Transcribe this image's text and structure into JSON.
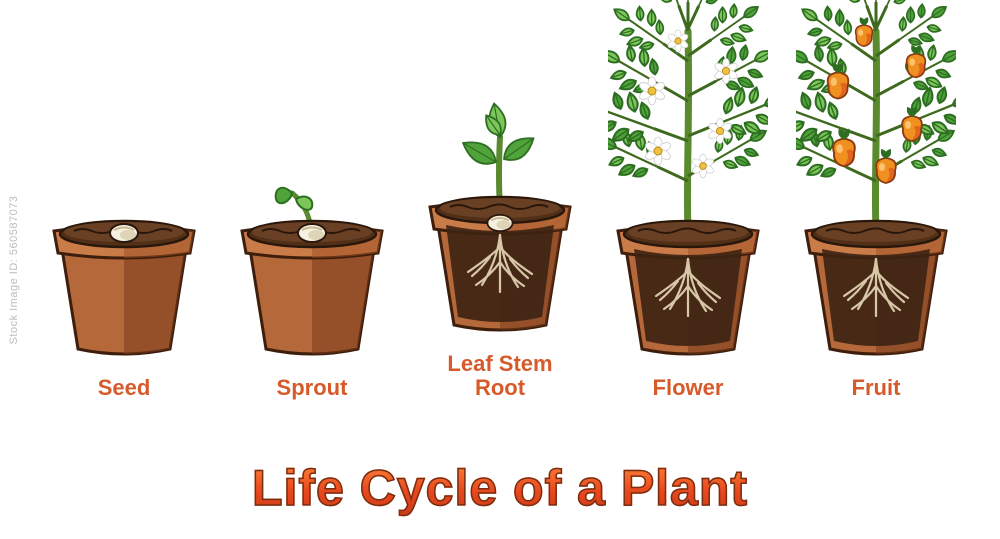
{
  "diagram": {
    "type": "infographic",
    "title": "Life Cycle of a Plant",
    "background_color": "#ffffff",
    "watermark": "Stock Image ID: 560587073",
    "title_style": {
      "fontsize_pt": 50,
      "gradient_top": "#ff8a3d",
      "gradient_mid": "#e9481e",
      "gradient_bottom": "#c93a16",
      "stroke": "#7a2e10"
    },
    "label_style": {
      "color": "#d75a2b",
      "fontsize_pt": 22,
      "font_weight": "bold"
    },
    "pot_style": {
      "rim_light": "#c97b48",
      "rim_dark": "#9e4f24",
      "body_light": "#b5683a",
      "body_dark": "#7a3d1e",
      "outline": "#3d1e0d"
    },
    "soil_style": {
      "top": "#6a4024",
      "mid": "#523018",
      "dark": "#3b2212",
      "outline": "#2a170b"
    },
    "plant_style": {
      "stem": "#5a8a2e",
      "stem_dark": "#3e6a1e",
      "leaf": "#4fa33a",
      "leaf_light": "#7cc65a",
      "leaf_dark": "#2e6e22",
      "seed_light": "#f5f0e0",
      "seed_shadow": "#c9b890",
      "root": "#e8d9b8",
      "flower_petal": "#ffffff",
      "flower_center": "#f0c040",
      "fruit_orange": "#f09020",
      "fruit_red": "#d84a20",
      "fruit_highlight": "#ffd080"
    },
    "stages": [
      {
        "id": "seed",
        "label": "Seed",
        "plant_height": 0,
        "has_seed": true,
        "has_sprout": false,
        "has_leaves": false,
        "has_roots": false,
        "has_big_plant": false,
        "has_flowers": false,
        "has_fruit": false
      },
      {
        "id": "sprout",
        "label": "Sprout",
        "plant_height": 40,
        "has_seed": true,
        "has_sprout": true,
        "has_leaves": false,
        "has_roots": false,
        "has_big_plant": false,
        "has_flowers": false,
        "has_fruit": false
      },
      {
        "id": "leaf-stem",
        "label": "Leaf Stem\nRoot",
        "plant_height": 90,
        "has_seed": true,
        "has_sprout": false,
        "has_leaves": true,
        "has_roots": true,
        "has_big_plant": false,
        "has_flowers": false,
        "has_fruit": false
      },
      {
        "id": "flower",
        "label": "Flower",
        "plant_height": 250,
        "has_seed": false,
        "has_sprout": false,
        "has_leaves": false,
        "has_roots": true,
        "has_big_plant": true,
        "has_flowers": true,
        "has_fruit": false
      },
      {
        "id": "fruit",
        "label": "Fruit",
        "plant_height": 250,
        "has_seed": false,
        "has_sprout": false,
        "has_leaves": false,
        "has_roots": true,
        "has_big_plant": true,
        "has_flowers": false,
        "has_fruit": true
      }
    ]
  }
}
